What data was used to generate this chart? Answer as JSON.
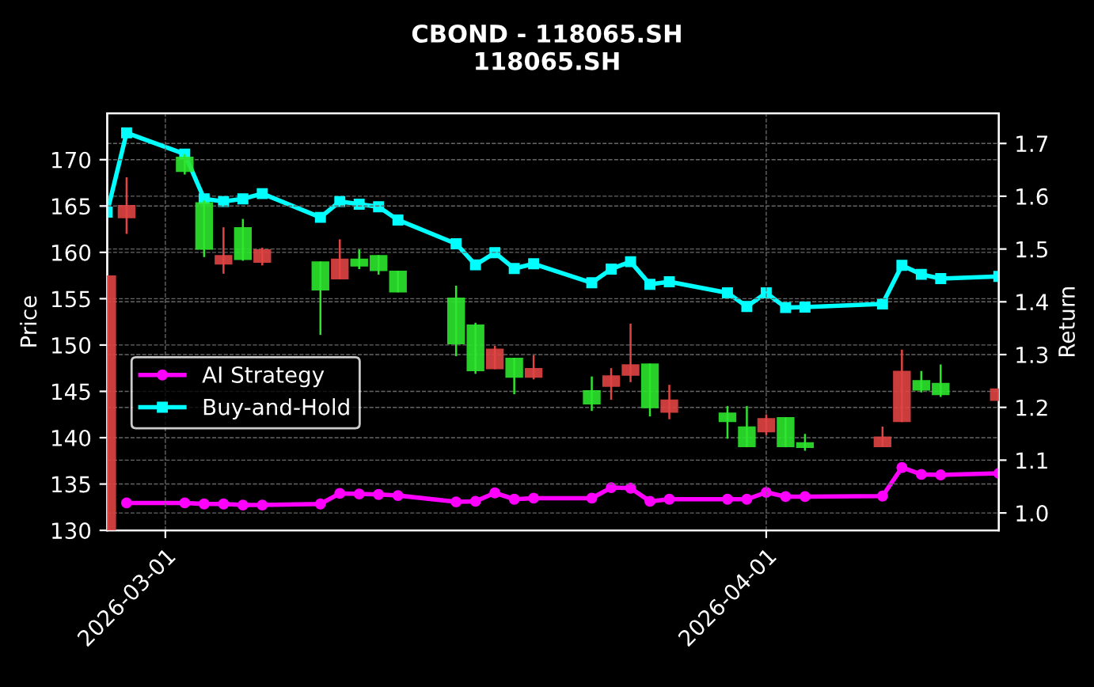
{
  "chart_data": {
    "type": "candlestick",
    "title": "CBOND - 118065.SH",
    "subtitle": "118065.SH",
    "ylabel": "Price",
    "y2label": "Return",
    "x": [
      "2026-02-26",
      "2026-02-27",
      "2026-03-02",
      "2026-03-03",
      "2026-03-04",
      "2026-03-05",
      "2026-03-06",
      "2026-03-09",
      "2026-03-10",
      "2026-03-11",
      "2026-03-12",
      "2026-03-13",
      "2026-03-16",
      "2026-03-17",
      "2026-03-18",
      "2026-03-19",
      "2026-03-20",
      "2026-03-23",
      "2026-03-24",
      "2026-03-25",
      "2026-03-26",
      "2026-03-27",
      "2026-03-30",
      "2026-03-31",
      "2026-04-01",
      "2026-04-02",
      "2026-04-03",
      "2026-04-07",
      "2026-04-08",
      "2026-04-09",
      "2026-04-10",
      "2026-04-13"
    ],
    "ohlc": [
      [
        157.4,
        157.4,
        130,
        130
      ],
      [
        165.0,
        168.0,
        162.1,
        163.8
      ],
      [
        168.8,
        170.5,
        168.5,
        170.2
      ],
      [
        160.4,
        165.5,
        159.6,
        165.3
      ],
      [
        159.6,
        162.6,
        157.8,
        158.8
      ],
      [
        159.3,
        163.5,
        159.2,
        162.6
      ],
      [
        160.2,
        160.4,
        158.7,
        159.0
      ],
      [
        156.0,
        158.9,
        151.2,
        158.9
      ],
      [
        159.2,
        161.3,
        157.2,
        157.2
      ],
      [
        158.6,
        160.2,
        158.3,
        159.2
      ],
      [
        158.1,
        159.6,
        157.7,
        159.6
      ],
      [
        155.8,
        157.9,
        155.8,
        157.9
      ],
      [
        150.2,
        156.3,
        148.9,
        155.0
      ],
      [
        147.3,
        152.3,
        147.0,
        152.1
      ],
      [
        149.5,
        149.8,
        147.5,
        147.5
      ],
      [
        146.6,
        148.5,
        144.8,
        148.5
      ],
      [
        147.4,
        148.8,
        146.4,
        146.6
      ],
      [
        143.7,
        146.5,
        143.0,
        145.0
      ],
      [
        146.6,
        147.4,
        144.2,
        145.6
      ],
      [
        147.8,
        152.2,
        146.1,
        146.8
      ],
      [
        143.3,
        147.9,
        142.4,
        147.9
      ],
      [
        144.0,
        145.6,
        142.1,
        142.8
      ],
      [
        141.8,
        143.3,
        140.0,
        142.6
      ],
      [
        139.1,
        143.3,
        139.1,
        141.1
      ],
      [
        142.0,
        142.4,
        140.4,
        140.7
      ],
      [
        139.1,
        142.1,
        139.1,
        142.1
      ],
      [
        139.0,
        140.3,
        138.7,
        139.4
      ],
      [
        140.0,
        141.1,
        139.1,
        139.1
      ],
      [
        147.1,
        149.4,
        141.8,
        141.8
      ],
      [
        145.2,
        147.1,
        145.0,
        146.1
      ],
      [
        144.7,
        147.8,
        144.5,
        145.8
      ],
      [
        145.2,
        145.2,
        144.1,
        144.1
      ]
    ],
    "colors": [
      "#e04444",
      "#e04444",
      "#2ee62e",
      "#2ee62e",
      "#e04444",
      "#2ee62e",
      "#e04444",
      "#2ee62e",
      "#e04444",
      "#2ee62e",
      "#2ee62e",
      "#2ee62e",
      "#2ee62e",
      "#2ee62e",
      "#e04444",
      "#2ee62e",
      "#e04444",
      "#2ee62e",
      "#e04444",
      "#e04444",
      "#2ee62e",
      "#e04444",
      "#2ee62e",
      "#2ee62e",
      "#e04444",
      "#2ee62e",
      "#2ee62e",
      "#e04444",
      "#e04444",
      "#2ee62e",
      "#2ee62e",
      "#e04444"
    ],
    "series": [
      {
        "name": "AI Strategy",
        "type": "line",
        "axis": "y2",
        "color": "#ff00ff",
        "marker": "circle",
        "values": [
          null,
          1.019,
          1.019,
          1.017,
          1.017,
          1.015,
          1.015,
          1.017,
          1.037,
          1.036,
          1.035,
          1.033,
          1.021,
          1.022,
          1.038,
          1.026,
          1.028,
          1.028,
          1.048,
          1.047,
          1.022,
          1.026,
          1.026,
          1.026,
          1.039,
          1.031,
          1.031,
          1.032,
          1.086,
          1.073,
          1.072,
          1.075
        ]
      },
      {
        "name": "Buy-and-Hold",
        "type": "line",
        "axis": "y2",
        "color": "#00ffff",
        "marker": "square",
        "values": [
          1.57,
          1.72,
          1.68,
          1.595,
          1.59,
          1.595,
          1.605,
          1.56,
          1.59,
          1.585,
          1.58,
          1.555,
          1.51,
          1.47,
          1.493,
          1.463,
          1.472,
          1.436,
          1.462,
          1.476,
          1.433,
          1.438,
          1.417,
          1.391,
          1.417,
          1.389,
          1.39,
          1.396,
          1.469,
          1.452,
          1.444,
          1.448
        ]
      }
    ],
    "xlim": [
      "2026-02-26",
      "2026-04-13"
    ],
    "xticks": [
      "2026-03-01",
      "2026-04-01"
    ],
    "ylim": [
      130,
      175
    ],
    "yticks": [
      130,
      135,
      140,
      145,
      150,
      155,
      160,
      165,
      170
    ],
    "y2lim": [
      0.967,
      1.757
    ],
    "y2ticks": [
      {
        "value": 1.0,
        "label": "1.0"
      },
      {
        "value": 1.1,
        "label": "1.1"
      },
      {
        "value": 1.2,
        "label": "1.2"
      },
      {
        "value": 1.3,
        "label": "1.3"
      },
      {
        "value": 1.4,
        "label": "1.4"
      },
      {
        "value": 1.5,
        "label": "1.5"
      },
      {
        "value": 1.6,
        "label": "1.6"
      },
      {
        "value": 1.7,
        "label": "1.7"
      }
    ],
    "grid": true,
    "legend": "left"
  }
}
